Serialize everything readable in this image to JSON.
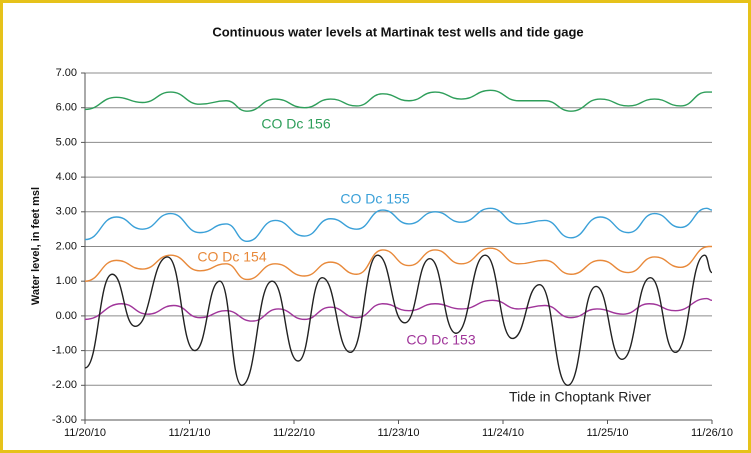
{
  "chart_data": {
    "type": "line",
    "title": "Continuous water levels at Martinak test wells and tide gage",
    "y_label": "Water level, in feet msl",
    "xlim": [
      0,
      6
    ],
    "xticks": [
      {
        "value": 0,
        "label": "11/20/10"
      },
      {
        "value": 1,
        "label": "11/21/10"
      },
      {
        "value": 2,
        "label": "11/22/10"
      },
      {
        "value": 3,
        "label": "11/23/10"
      },
      {
        "value": 4,
        "label": "11/24/10"
      },
      {
        "value": 5,
        "label": "11/25/10"
      },
      {
        "value": 6,
        "label": "11/26/10"
      }
    ],
    "ylim": [
      -3,
      7
    ],
    "yticks": [
      {
        "value": -3,
        "label": "-3.00"
      },
      {
        "value": -2,
        "label": "-2.00"
      },
      {
        "value": -1,
        "label": "-1.00"
      },
      {
        "value": 0,
        "label": "0.00"
      },
      {
        "value": 1,
        "label": "1.00"
      },
      {
        "value": 2,
        "label": "2.00"
      },
      {
        "value": 3,
        "label": "3.00"
      },
      {
        "value": 4,
        "label": "4.00"
      },
      {
        "value": 5,
        "label": "5.00"
      },
      {
        "value": 6,
        "label": "6.00"
      },
      {
        "value": 7,
        "label": "7.00"
      }
    ],
    "grid": true,
    "series": [
      {
        "name": "CO Dc 156",
        "color": "#2e9e5a",
        "x": [
          0,
          0.3,
          0.55,
          0.82,
          1.1,
          1.35,
          1.55,
          1.82,
          2.1,
          2.35,
          2.6,
          2.85,
          3.1,
          3.35,
          3.6,
          3.88,
          4.15,
          4.4,
          4.65,
          4.93,
          5.2,
          5.45,
          5.7,
          5.95,
          6.0
        ],
        "values": [
          5.95,
          6.3,
          6.15,
          6.45,
          6.1,
          6.2,
          5.9,
          6.25,
          6.0,
          6.25,
          6.05,
          6.4,
          6.2,
          6.45,
          6.25,
          6.5,
          6.2,
          6.2,
          5.9,
          6.25,
          6.05,
          6.25,
          6.05,
          6.45,
          6.45
        ]
      },
      {
        "name": "CO Dc 155",
        "color": "#3aa0d8",
        "x": [
          0,
          0.3,
          0.55,
          0.82,
          1.1,
          1.35,
          1.55,
          1.82,
          2.1,
          2.35,
          2.6,
          2.85,
          3.1,
          3.35,
          3.6,
          3.88,
          4.15,
          4.4,
          4.65,
          4.93,
          5.2,
          5.45,
          5.7,
          5.95,
          6.0
        ],
        "values": [
          2.2,
          2.85,
          2.5,
          2.95,
          2.4,
          2.65,
          2.15,
          2.75,
          2.3,
          2.8,
          2.5,
          3.05,
          2.65,
          3.0,
          2.7,
          3.1,
          2.65,
          2.75,
          2.25,
          2.85,
          2.4,
          2.95,
          2.55,
          3.1,
          3.05
        ]
      },
      {
        "name": "CO Dc 154",
        "color": "#e8893a",
        "x": [
          0,
          0.3,
          0.55,
          0.82,
          1.1,
          1.35,
          1.55,
          1.82,
          2.1,
          2.35,
          2.6,
          2.85,
          3.1,
          3.35,
          3.6,
          3.88,
          4.15,
          4.4,
          4.65,
          4.93,
          5.2,
          5.45,
          5.7,
          5.97,
          6.0
        ],
        "values": [
          1.0,
          1.6,
          1.35,
          1.75,
          1.3,
          1.5,
          1.05,
          1.5,
          1.15,
          1.55,
          1.2,
          1.9,
          1.45,
          1.9,
          1.5,
          1.95,
          1.5,
          1.6,
          1.2,
          1.6,
          1.25,
          1.7,
          1.4,
          2.0,
          2.0
        ]
      },
      {
        "name": "CO Dc 153",
        "color": "#a0359a",
        "x": [
          0,
          0.35,
          0.6,
          0.85,
          1.1,
          1.35,
          1.6,
          1.85,
          2.1,
          2.35,
          2.6,
          2.85,
          3.1,
          3.35,
          3.6,
          3.9,
          4.15,
          4.4,
          4.65,
          4.9,
          5.15,
          5.4,
          5.65,
          5.95,
          6.0
        ],
        "values": [
          -0.1,
          0.35,
          0.05,
          0.3,
          -0.05,
          0.15,
          -0.15,
          0.2,
          -0.1,
          0.25,
          -0.05,
          0.35,
          0.15,
          0.35,
          0.2,
          0.45,
          0.2,
          0.3,
          -0.05,
          0.2,
          0.05,
          0.35,
          0.15,
          0.5,
          0.45
        ]
      },
      {
        "name": "Tide in Choptank River",
        "color": "#222222",
        "x": [
          0,
          0.26,
          0.48,
          0.79,
          1.05,
          1.29,
          1.5,
          1.79,
          2.04,
          2.27,
          2.54,
          2.8,
          3.06,
          3.3,
          3.55,
          3.83,
          4.09,
          4.35,
          4.62,
          4.89,
          5.14,
          5.41,
          5.65,
          5.93,
          6.0
        ],
        "values": [
          -1.5,
          1.2,
          -0.3,
          1.7,
          -1.0,
          1.0,
          -2.0,
          1.0,
          -1.3,
          1.1,
          -1.05,
          1.75,
          -0.2,
          1.65,
          -0.5,
          1.75,
          -0.65,
          0.9,
          -2.0,
          0.85,
          -1.25,
          1.1,
          -1.05,
          1.75,
          1.25
        ]
      }
    ]
  }
}
